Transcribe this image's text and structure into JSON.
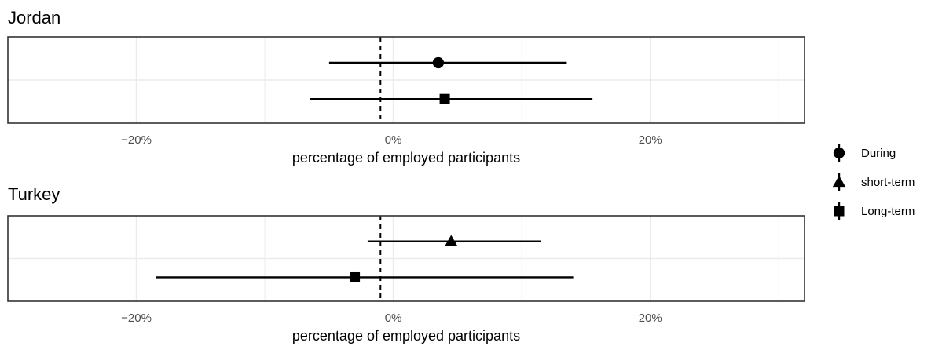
{
  "chart_data": {
    "type": "scatter",
    "subtype": "forest-plot (point estimate with interval)",
    "xlim": [
      -30,
      32
    ],
    "xticks": [
      -20,
      0,
      20
    ],
    "xtick_labels": [
      "−20%",
      "0%",
      "20%"
    ],
    "reference_line_x": -1,
    "grid": true,
    "legend_position": "right",
    "legend": [
      {
        "name": "During",
        "shape": "circle"
      },
      {
        "name": "short-term",
        "shape": "triangle"
      },
      {
        "name": "Long-term",
        "shape": "square"
      }
    ],
    "panels": [
      {
        "title": "Jordan",
        "xlabel": "percentage of employed participants",
        "points": [
          {
            "series": "During",
            "row": 1,
            "estimate": 3.5,
            "low": -5,
            "high": 13.5
          },
          {
            "series": "Long-term",
            "row": 2,
            "estimate": 4,
            "low": -6.5,
            "high": 15.5
          }
        ]
      },
      {
        "title": "Turkey",
        "xlabel": "percentage of employed participants",
        "points": [
          {
            "series": "short-term",
            "row": 1,
            "estimate": 4.5,
            "low": -2,
            "high": 11.5
          },
          {
            "series": "Long-term",
            "row": 2,
            "estimate": -3,
            "low": -18.5,
            "high": 14
          }
        ]
      }
    ],
    "colors": {
      "marks": "#000000",
      "grid": "#ebebeb",
      "panel_border": "#333333",
      "tick_text": "#4d4d4d"
    }
  }
}
